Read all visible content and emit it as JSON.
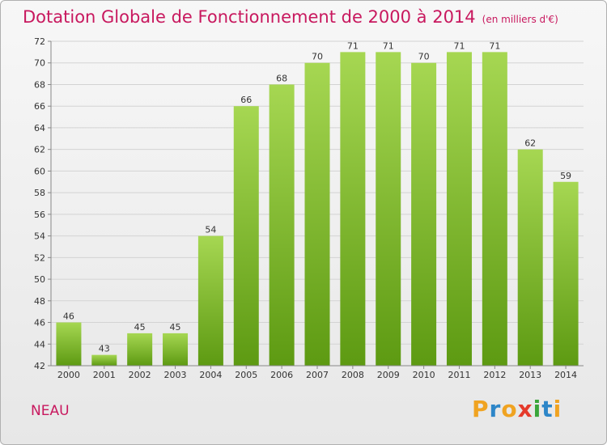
{
  "header": {
    "title": "Dotation Globale de Fonctionnement de 2000 à 2014",
    "unit": "(en milliers d'€)"
  },
  "footer": {
    "city": "NEAU",
    "logo_letters": [
      "P",
      "r",
      "o",
      "x",
      "i",
      "t",
      "i"
    ]
  },
  "colors": {
    "title": "#c8185e",
    "bar_light": "#a6d752",
    "bar_dark": "#5d9a12",
    "logo": [
      "#f0a321",
      "#2d86c8",
      "#f0a321",
      "#e53a2b",
      "#3aa53a",
      "#2d86c8",
      "#f0a321"
    ]
  },
  "chart_data": {
    "type": "bar",
    "title": "Dotation Globale de Fonctionnement de 2000 à 2014",
    "xlabel": "",
    "ylabel": "",
    "categories": [
      "2000",
      "2001",
      "2002",
      "2003",
      "2004",
      "2005",
      "2006",
      "2007",
      "2008",
      "2009",
      "2010",
      "2011",
      "2012",
      "2013",
      "2014"
    ],
    "values": [
      46,
      43,
      45,
      45,
      54,
      66,
      68,
      70,
      71,
      71,
      70,
      71,
      71,
      62,
      59
    ],
    "ylim": [
      42,
      72
    ],
    "yticks": [
      42,
      44,
      46,
      48,
      50,
      52,
      54,
      56,
      58,
      60,
      62,
      64,
      66,
      68,
      70,
      72
    ],
    "grid": true,
    "legend": "none"
  }
}
